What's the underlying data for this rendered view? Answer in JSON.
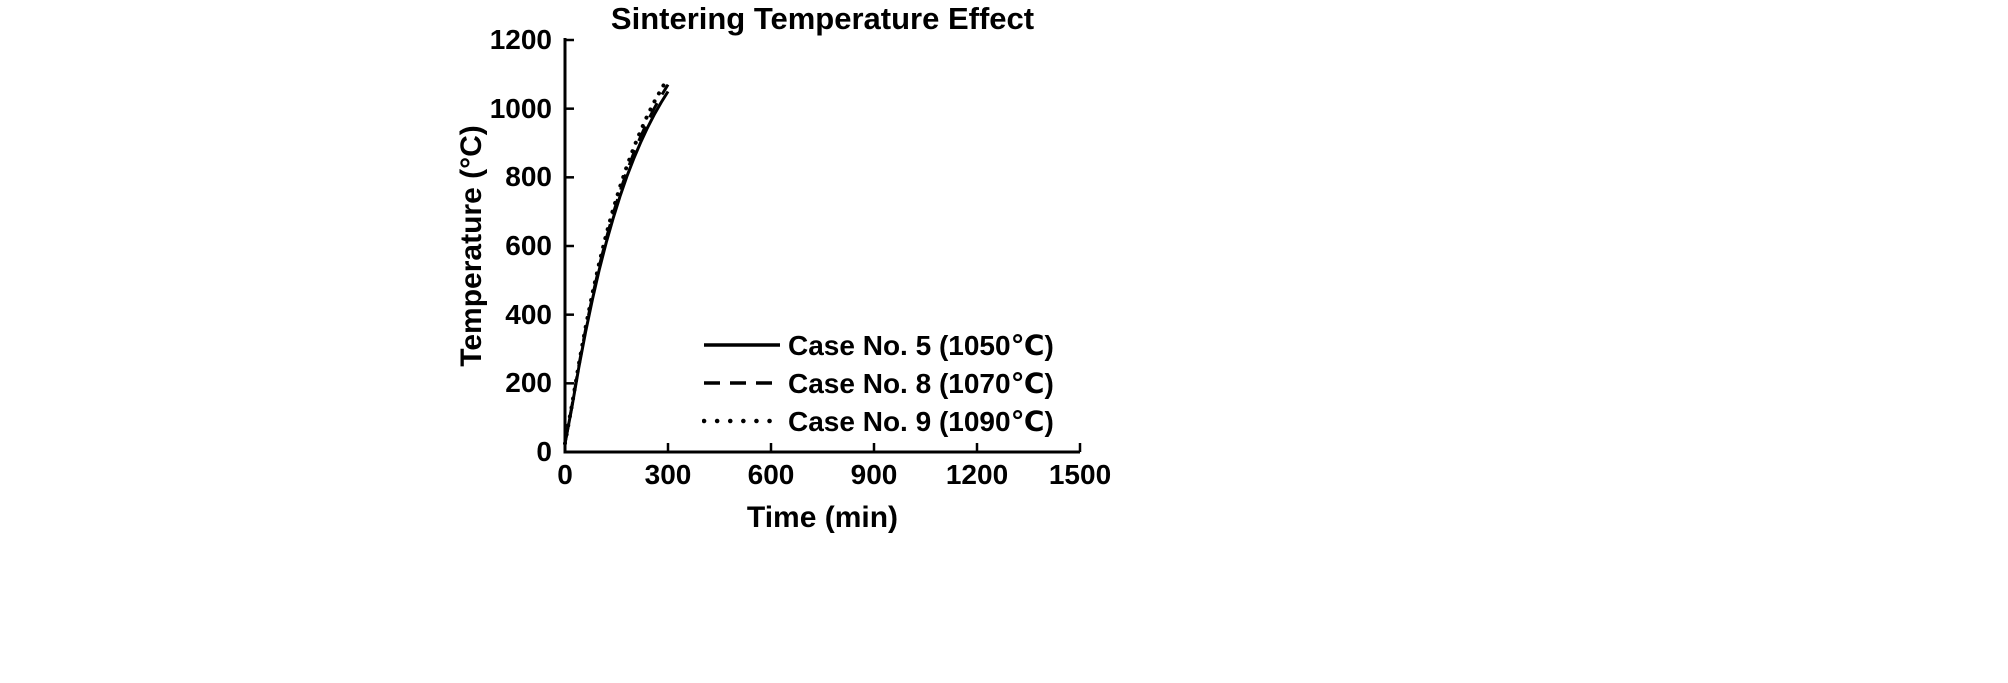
{
  "chart_data": {
    "type": "line",
    "title": "Sintering Temperature Effect",
    "xlabel": "Time (min)",
    "ylabel": "Temperature (°C)",
    "xlim": [
      0,
      1500
    ],
    "ylim": [
      0,
      1200
    ],
    "xticks": [
      0,
      300,
      600,
      900,
      1200,
      1500
    ],
    "yticks": [
      0,
      200,
      400,
      600,
      800,
      1000,
      1200
    ],
    "grid": false,
    "legend_position": "inside lower right",
    "axis_color": "#000000",
    "series": [
      {
        "name": "Case No. 5 (1050℃)",
        "line_style": "solid",
        "color": "#000000",
        "x": [
          0,
          20,
          40,
          60,
          80,
          100,
          120,
          140,
          160,
          180,
          200,
          220,
          240,
          260,
          280,
          300
        ],
        "y": [
          25,
          130,
          245,
          350,
          445,
          532,
          610,
          680,
          744,
          802,
          854,
          901,
          944,
          983,
          1018,
          1050
        ]
      },
      {
        "name": "Case No. 8 (1070℃)",
        "line_style": "dashed",
        "color": "#000000",
        "x": [
          0,
          20,
          40,
          60,
          80,
          100,
          120,
          140,
          160,
          180,
          200,
          220,
          240,
          260,
          280,
          300
        ],
        "y": [
          25,
          133,
          250,
          357,
          453,
          542,
          621,
          693,
          758,
          817,
          870,
          918,
          962,
          1001,
          1037,
          1070
        ]
      },
      {
        "name": "Case No. 9 (1090℃)",
        "line_style": "dotted",
        "color": "#000000",
        "x": [
          0,
          20,
          40,
          60,
          80,
          100,
          120,
          140,
          160,
          180,
          200,
          220,
          240,
          260,
          280,
          300
        ],
        "y": [
          25,
          135,
          254,
          363,
          462,
          552,
          633,
          706,
          772,
          832,
          886,
          935,
          980,
          1020,
          1056,
          1090
        ]
      }
    ]
  }
}
